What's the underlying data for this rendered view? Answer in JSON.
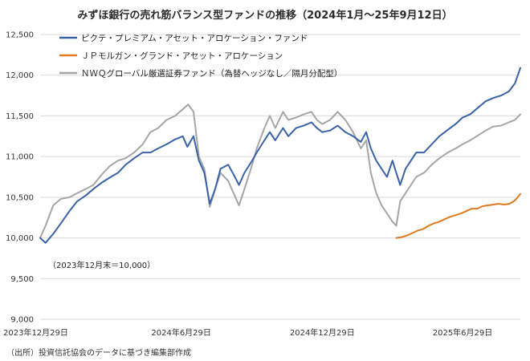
{
  "chart_data": {
    "type": "line",
    "title": "みずほ銀行の売れ筋バランス型ファンドの推移（2024年1月〜25年9月12日）",
    "base_note": "（2023年12月末＝10,000）",
    "source": "（出所）投資信託協会のデータに基づき編集部作成",
    "x_range": [
      "2023-12-29",
      "2025-09-12"
    ],
    "ylim": [
      9000,
      12500
    ],
    "y_ticks": [
      {
        "value": 9000,
        "label": "9,000"
      },
      {
        "value": 9500,
        "label": "9,500"
      },
      {
        "value": 10000,
        "label": "10,000"
      },
      {
        "value": 10500,
        "label": "10,500"
      },
      {
        "value": 11000,
        "label": "11,000"
      },
      {
        "value": 11500,
        "label": "11,500"
      },
      {
        "value": 12000,
        "label": "12,000"
      },
      {
        "value": 12500,
        "label": "12,500"
      }
    ],
    "x_ticks": [
      {
        "date": "2023-12-29",
        "label": "2023年12月29日"
      },
      {
        "date": "2024-06-29",
        "label": "2024年6月29日"
      },
      {
        "date": "2024-12-29",
        "label": "2024年12月29日"
      },
      {
        "date": "2025-06-29",
        "label": "2025年6月29日"
      }
    ],
    "grid": "horizontal",
    "legend_position": "top-left",
    "series": [
      {
        "name": "ピクテ・プレミアム・アセット・アロケーション・ファンド",
        "color": "#3a62a8",
        "points": [
          [
            "2023-12-29",
            10000
          ],
          [
            "2024-01-05",
            9940
          ],
          [
            "2024-01-15",
            10050
          ],
          [
            "2024-01-25",
            10180
          ],
          [
            "2024-02-05",
            10330
          ],
          [
            "2024-02-15",
            10450
          ],
          [
            "2024-02-26",
            10520
          ],
          [
            "2024-03-07",
            10600
          ],
          [
            "2024-03-18",
            10680
          ],
          [
            "2024-03-28",
            10740
          ],
          [
            "2024-04-08",
            10800
          ],
          [
            "2024-04-18",
            10900
          ],
          [
            "2024-04-29",
            10980
          ],
          [
            "2024-05-10",
            11050
          ],
          [
            "2024-05-20",
            11050
          ],
          [
            "2024-05-30",
            11100
          ],
          [
            "2024-06-10",
            11150
          ],
          [
            "2024-06-21",
            11210
          ],
          [
            "2024-07-01",
            11250
          ],
          [
            "2024-07-07",
            11120
          ],
          [
            "2024-07-15",
            11250
          ],
          [
            "2024-07-22",
            10950
          ],
          [
            "2024-07-29",
            10800
          ],
          [
            "2024-08-05",
            10420
          ],
          [
            "2024-08-12",
            10600
          ],
          [
            "2024-08-19",
            10850
          ],
          [
            "2024-08-29",
            10900
          ],
          [
            "2024-09-05",
            10780
          ],
          [
            "2024-09-12",
            10650
          ],
          [
            "2024-09-19",
            10800
          ],
          [
            "2024-09-29",
            10950
          ],
          [
            "2024-10-05",
            11050
          ],
          [
            "2024-10-15",
            11200
          ],
          [
            "2024-10-22",
            11300
          ],
          [
            "2024-10-29",
            11200
          ],
          [
            "2024-11-08",
            11350
          ],
          [
            "2024-11-15",
            11250
          ],
          [
            "2024-11-25",
            11350
          ],
          [
            "2024-12-05",
            11380
          ],
          [
            "2024-12-15",
            11420
          ],
          [
            "2024-12-22",
            11350
          ],
          [
            "2024-12-29",
            11300
          ],
          [
            "2025-01-08",
            11320
          ],
          [
            "2025-01-18",
            11380
          ],
          [
            "2025-01-28",
            11300
          ],
          [
            "2025-02-07",
            11250
          ],
          [
            "2025-02-17",
            11180
          ],
          [
            "2025-02-24",
            11300
          ],
          [
            "2025-03-02",
            11100
          ],
          [
            "2025-03-09",
            10950
          ],
          [
            "2025-03-16",
            10850
          ],
          [
            "2025-03-23",
            10750
          ],
          [
            "2025-03-30",
            10950
          ],
          [
            "2025-04-04",
            10800
          ],
          [
            "2025-04-09",
            10650
          ],
          [
            "2025-04-16",
            10850
          ],
          [
            "2025-04-23",
            10950
          ],
          [
            "2025-04-30",
            11050
          ],
          [
            "2025-05-10",
            11050
          ],
          [
            "2025-05-20",
            11150
          ],
          [
            "2025-05-30",
            11250
          ],
          [
            "2025-06-10",
            11330
          ],
          [
            "2025-06-20",
            11400
          ],
          [
            "2025-06-29",
            11480
          ],
          [
            "2025-07-09",
            11520
          ],
          [
            "2025-07-19",
            11600
          ],
          [
            "2025-07-29",
            11680
          ],
          [
            "2025-08-08",
            11720
          ],
          [
            "2025-08-18",
            11750
          ],
          [
            "2025-08-28",
            11800
          ],
          [
            "2025-09-05",
            11900
          ],
          [
            "2025-09-12",
            12090
          ]
        ]
      },
      {
        "name": "ＪＰモルガン・グランド・アセット・アロケーション",
        "color": "#e07a1f",
        "points": [
          [
            "2025-04-04",
            10000
          ],
          [
            "2025-04-11",
            10010
          ],
          [
            "2025-04-18",
            10030
          ],
          [
            "2025-04-25",
            10060
          ],
          [
            "2025-05-02",
            10090
          ],
          [
            "2025-05-09",
            10110
          ],
          [
            "2025-05-16",
            10150
          ],
          [
            "2025-05-23",
            10180
          ],
          [
            "2025-05-30",
            10200
          ],
          [
            "2025-06-06",
            10230
          ],
          [
            "2025-06-13",
            10260
          ],
          [
            "2025-06-20",
            10280
          ],
          [
            "2025-06-27",
            10300
          ],
          [
            "2025-07-04",
            10330
          ],
          [
            "2025-07-11",
            10360
          ],
          [
            "2025-07-18",
            10360
          ],
          [
            "2025-07-25",
            10390
          ],
          [
            "2025-08-01",
            10400
          ],
          [
            "2025-08-08",
            10410
          ],
          [
            "2025-08-15",
            10420
          ],
          [
            "2025-08-22",
            10410
          ],
          [
            "2025-08-29",
            10420
          ],
          [
            "2025-09-05",
            10460
          ],
          [
            "2025-09-12",
            10540
          ]
        ]
      },
      {
        "name": "ＮＷＱグローバル厳選証券ファンド（為替ヘッジなし／隔月分配型）",
        "color": "#a5a5a5",
        "points": [
          [
            "2023-12-29",
            10000
          ],
          [
            "2024-01-05",
            10150
          ],
          [
            "2024-01-15",
            10400
          ],
          [
            "2024-01-25",
            10480
          ],
          [
            "2024-02-05",
            10500
          ],
          [
            "2024-02-15",
            10550
          ],
          [
            "2024-02-26",
            10600
          ],
          [
            "2024-03-07",
            10650
          ],
          [
            "2024-03-18",
            10780
          ],
          [
            "2024-03-28",
            10880
          ],
          [
            "2024-04-08",
            10950
          ],
          [
            "2024-04-18",
            10980
          ],
          [
            "2024-04-29",
            11050
          ],
          [
            "2024-05-10",
            11150
          ],
          [
            "2024-05-20",
            11300
          ],
          [
            "2024-05-30",
            11350
          ],
          [
            "2024-06-10",
            11450
          ],
          [
            "2024-06-21",
            11500
          ],
          [
            "2024-07-01",
            11580
          ],
          [
            "2024-07-08",
            11640
          ],
          [
            "2024-07-15",
            11550
          ],
          [
            "2024-07-22",
            11000
          ],
          [
            "2024-07-29",
            10850
          ],
          [
            "2024-08-05",
            10380
          ],
          [
            "2024-08-12",
            10600
          ],
          [
            "2024-08-19",
            10800
          ],
          [
            "2024-08-29",
            10700
          ],
          [
            "2024-09-05",
            10550
          ],
          [
            "2024-09-12",
            10400
          ],
          [
            "2024-09-19",
            10600
          ],
          [
            "2024-09-29",
            10900
          ],
          [
            "2024-10-05",
            11100
          ],
          [
            "2024-10-15",
            11350
          ],
          [
            "2024-10-22",
            11500
          ],
          [
            "2024-10-29",
            11350
          ],
          [
            "2024-11-08",
            11550
          ],
          [
            "2024-11-15",
            11450
          ],
          [
            "2024-11-25",
            11480
          ],
          [
            "2024-12-05",
            11520
          ],
          [
            "2024-12-15",
            11550
          ],
          [
            "2024-12-22",
            11450
          ],
          [
            "2024-12-29",
            11400
          ],
          [
            "2025-01-08",
            11450
          ],
          [
            "2025-01-18",
            11550
          ],
          [
            "2025-01-28",
            11450
          ],
          [
            "2025-02-07",
            11300
          ],
          [
            "2025-02-17",
            11100
          ],
          [
            "2025-02-24",
            11200
          ],
          [
            "2025-03-02",
            10800
          ],
          [
            "2025-03-09",
            10550
          ],
          [
            "2025-03-16",
            10400
          ],
          [
            "2025-03-23",
            10300
          ],
          [
            "2025-03-30",
            10200
          ],
          [
            "2025-04-04",
            10150
          ],
          [
            "2025-04-09",
            10450
          ],
          [
            "2025-04-16",
            10550
          ],
          [
            "2025-04-23",
            10650
          ],
          [
            "2025-04-30",
            10750
          ],
          [
            "2025-05-10",
            10800
          ],
          [
            "2025-05-20",
            10900
          ],
          [
            "2025-05-30",
            10980
          ],
          [
            "2025-06-10",
            11050
          ],
          [
            "2025-06-20",
            11100
          ],
          [
            "2025-06-29",
            11150
          ],
          [
            "2025-07-09",
            11200
          ],
          [
            "2025-07-19",
            11260
          ],
          [
            "2025-07-29",
            11320
          ],
          [
            "2025-08-08",
            11370
          ],
          [
            "2025-08-18",
            11380
          ],
          [
            "2025-08-28",
            11420
          ],
          [
            "2025-09-05",
            11450
          ],
          [
            "2025-09-12",
            11520
          ]
        ]
      }
    ]
  }
}
